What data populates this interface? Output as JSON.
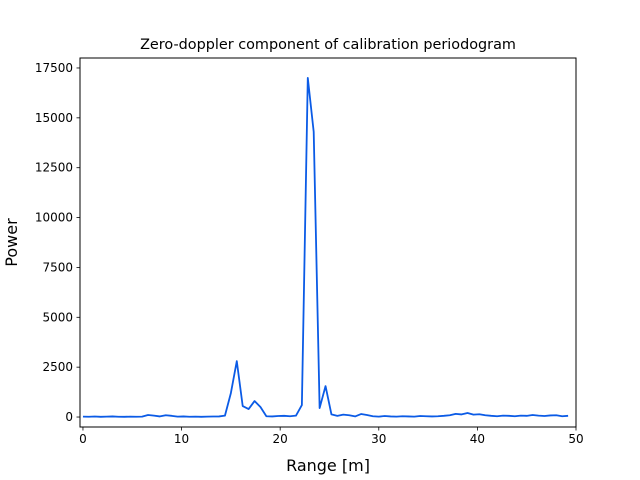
{
  "chart_data": {
    "type": "line",
    "title": "Zero-doppler component of calibration periodogram",
    "xlabel": "Range [m]",
    "ylabel": "Power",
    "xlim": [
      -0.3,
      50
    ],
    "ylim": [
      -500,
      18000
    ],
    "grid": false,
    "line_color": "#0b5be6",
    "x_ticks": [
      0,
      10,
      20,
      30,
      40,
      50
    ],
    "x_tick_labels": [
      "0",
      "10",
      "20",
      "30",
      "40",
      "50"
    ],
    "y_ticks": [
      0,
      2500,
      5000,
      7500,
      10000,
      12500,
      15000,
      17500
    ],
    "y_tick_labels": [
      "0",
      "2500",
      "5000",
      "7500",
      "10000",
      "12500",
      "15000",
      "17500"
    ],
    "series": [
      {
        "x": [
          0,
          0.6,
          1.2,
          1.8,
          2.4,
          3,
          3.6,
          4.2,
          4.8,
          5.4,
          6,
          6.6,
          7.2,
          7.8,
          8.4,
          9,
          9.6,
          10.2,
          10.8,
          11.4,
          12,
          12.6,
          13.2,
          13.8,
          14.4,
          15,
          15.6,
          16.2,
          16.8,
          17.4,
          18,
          18.6,
          19.2,
          19.8,
          20.4,
          21,
          21.6,
          22.2,
          22.8,
          23.4,
          24,
          24.6,
          25.2,
          25.8,
          26.4,
          27,
          27.6,
          28.2,
          28.8,
          29.4,
          30,
          30.6,
          31.2,
          31.8,
          32.4,
          33,
          33.6,
          34.2,
          34.8,
          35.4,
          36,
          36.6,
          37.2,
          37.8,
          38.4,
          39,
          39.6,
          40.2,
          40.8,
          41.4,
          42,
          42.6,
          43.2,
          43.8,
          44.4,
          45,
          45.6,
          46.2,
          46.8,
          47.4,
          48,
          48.6,
          49.2
        ],
        "y": [
          20,
          15,
          25,
          10,
          20,
          30,
          15,
          10,
          20,
          15,
          20,
          100,
          70,
          30,
          90,
          60,
          20,
          30,
          15,
          20,
          10,
          20,
          25,
          30,
          70,
          1200,
          2800,
          550,
          400,
          800,
          500,
          40,
          30,
          50,
          60,
          40,
          70,
          600,
          17000,
          14300,
          450,
          1550,
          130,
          60,
          120,
          90,
          30,
          150,
          100,
          40,
          20,
          50,
          30,
          20,
          40,
          30,
          20,
          50,
          40,
          30,
          40,
          60,
          90,
          160,
          130,
          200,
          120,
          140,
          90,
          60,
          40,
          70,
          60,
          40,
          70,
          60,
          100,
          70,
          50,
          80,
          90,
          40,
          60
        ]
      }
    ]
  }
}
